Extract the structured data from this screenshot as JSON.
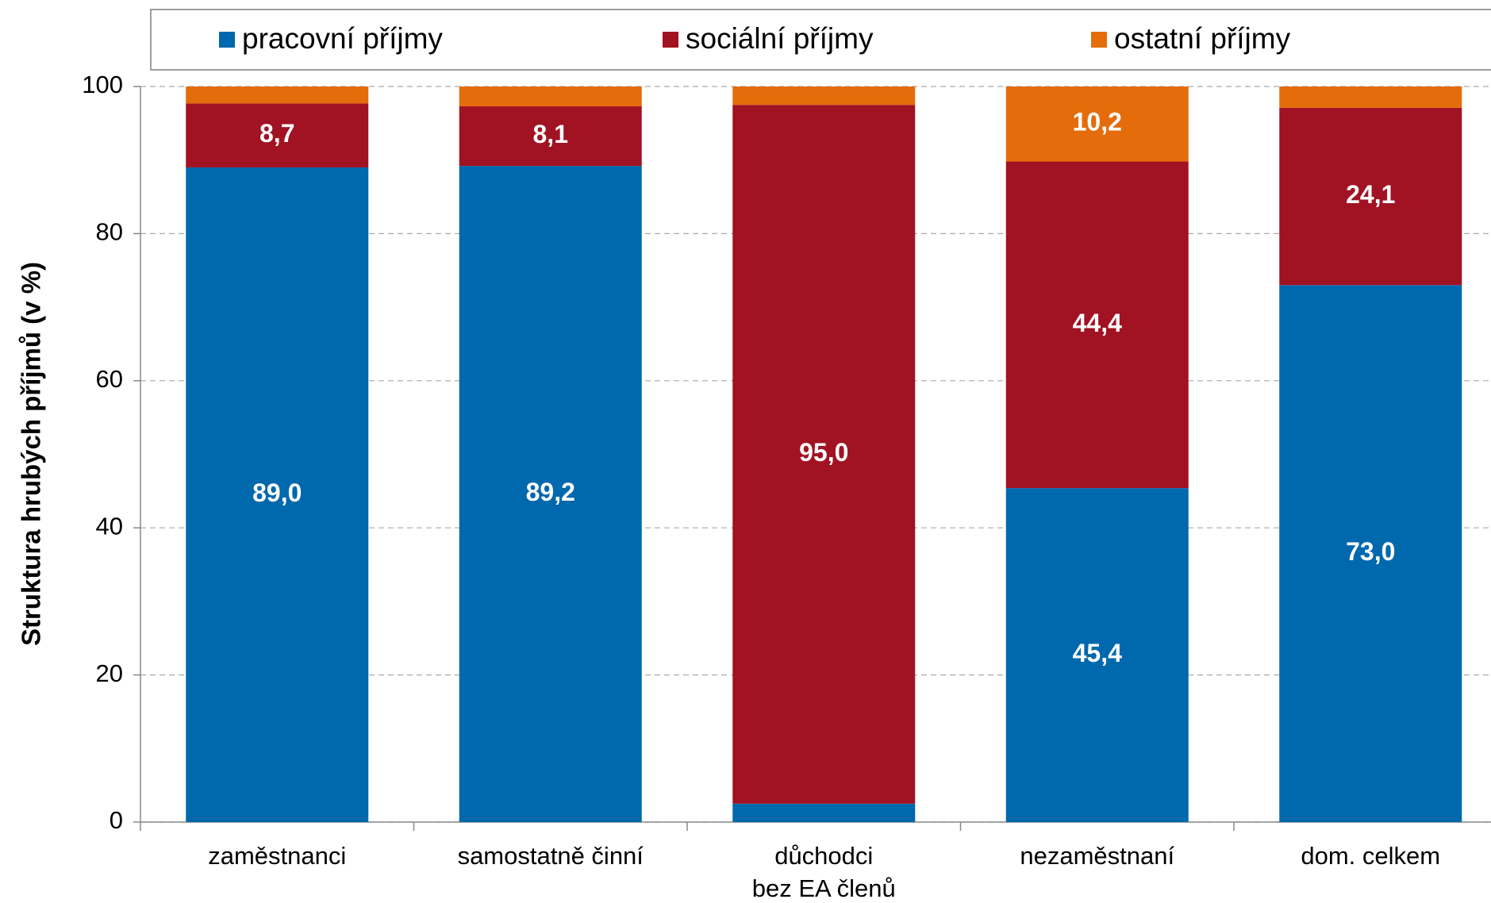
{
  "chart_data": {
    "type": "stacked_bar",
    "y_label": "Struktura hrubých příjmů (v %)",
    "categories": [
      "zaměstnanci",
      "samostatně činní",
      [
        "důchodci",
        "bez EA členů"
      ],
      "nezaměstnaní",
      "dom. celkem"
    ],
    "series": [
      {
        "name": "pracovní příjmy",
        "color": "#0068ad",
        "values": [
          89.0,
          89.2,
          2.5,
          45.4,
          73.0
        ],
        "value_labels": [
          "89,0",
          "89,2",
          null,
          "45,4",
          "73,0"
        ]
      },
      {
        "name": "sociální příjmy",
        "color": "#a11222",
        "values": [
          8.7,
          8.1,
          95.0,
          44.4,
          24.1
        ],
        "value_labels": [
          "8,7",
          "8,1",
          "95,0",
          "44,4",
          "24,1"
        ]
      },
      {
        "name": "ostatní příjmy",
        "color": "#e46c0a",
        "values": [
          2.3,
          2.7,
          2.5,
          10.2,
          2.9
        ],
        "value_labels": [
          null,
          null,
          null,
          "10,2",
          null
        ]
      }
    ],
    "ylim": [
      0,
      100
    ],
    "yticks": [
      0,
      20,
      40,
      60,
      80,
      100
    ],
    "grid": true,
    "legend": "top"
  }
}
